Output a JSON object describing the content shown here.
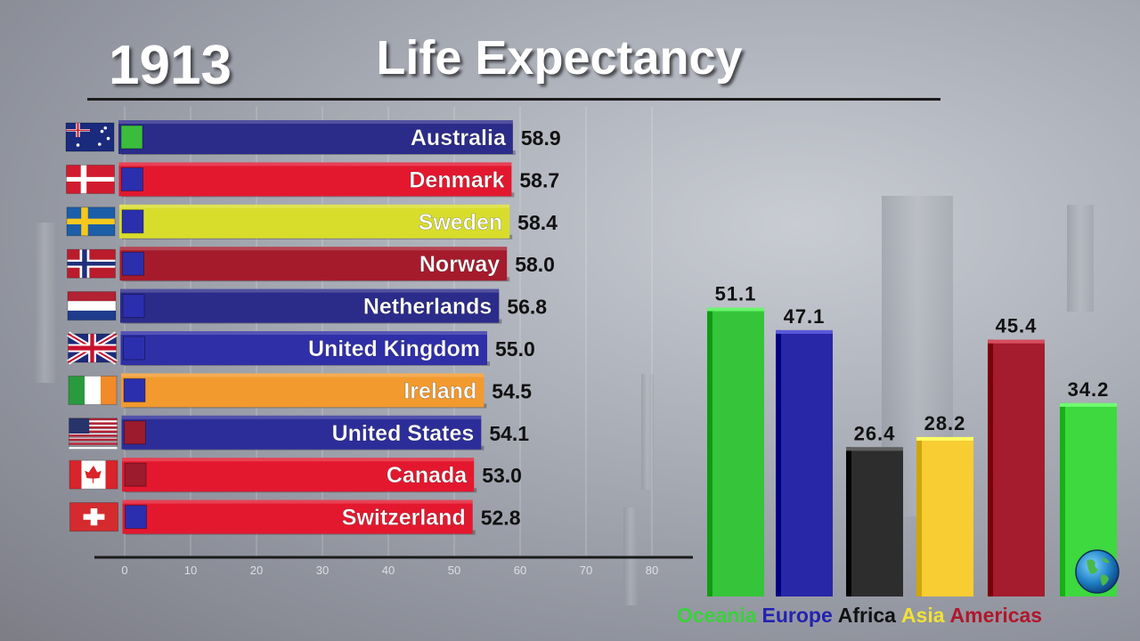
{
  "year": "1913",
  "title": "Life Expectancy",
  "chart_data": [
    {
      "type": "bar",
      "orientation": "horizontal",
      "categories": [
        "Australia",
        "Denmark",
        "Sweden",
        "Norway",
        "Netherlands",
        "United Kingdom",
        "Ireland",
        "United States",
        "Canada",
        "Switzerland"
      ],
      "values": [
        58.9,
        58.7,
        58.4,
        58.0,
        56.8,
        55.0,
        54.5,
        54.1,
        53.0,
        52.8
      ],
      "value_labels": [
        "58.9",
        "58.7",
        "58.4",
        "58.0",
        "56.8",
        "55.0",
        "54.5",
        "54.1",
        "53.0",
        "52.8"
      ],
      "continent": [
        "Oceania",
        "Europe",
        "Europe",
        "Europe",
        "Europe",
        "Europe",
        "Europe",
        "Americas",
        "Americas",
        "Europe"
      ],
      "bar_colors": [
        "#2b2b8a",
        "#e3182f",
        "#d8dd2c",
        "#a51b2c",
        "#2b2b8a",
        "#2f2fa8",
        "#f29a2e",
        "#2d2d9a",
        "#e3182f",
        "#e3182f"
      ],
      "flags": [
        "australia-flag",
        "denmark-flag",
        "sweden-flag",
        "norway-flag",
        "netherlands-flag",
        "united-kingdom-flag",
        "ireland-flag",
        "united-states-flag",
        "canada-flag",
        "switzerland-flag"
      ],
      "xlim": [
        0,
        80
      ],
      "xticks": [
        "0",
        "10",
        "20",
        "30",
        "40",
        "50",
        "60",
        "70",
        "80"
      ],
      "grid": true
    },
    {
      "type": "bar",
      "categories": [
        "Oceania",
        "Europe",
        "Africa",
        "Asia",
        "Americas"
      ],
      "values": [
        51.1,
        47.1,
        26.4,
        28.2,
        45.4
      ],
      "value_labels": [
        "51.1",
        "47.1",
        "26.4",
        "28.2",
        "45.4"
      ],
      "colors": [
        "#36c43a",
        "#2727a8",
        "#2d2d2d",
        "#f7cd33",
        "#a41c2d"
      ],
      "label_colors": [
        "#39d13c",
        "#2323b0",
        "#111111",
        "#f1e235",
        "#b0172c"
      ]
    },
    {
      "type": "bar",
      "categories": [
        "World"
      ],
      "values": [
        34.2
      ],
      "value_labels": [
        "34.2"
      ],
      "colors": [
        "#3ed83f"
      ],
      "icon": "globe-icon"
    }
  ],
  "colors": {
    "europe_marker": "#2b2fae",
    "oceania_marker": "#3bbd3c",
    "americas_marker": "#9c1b2c"
  }
}
